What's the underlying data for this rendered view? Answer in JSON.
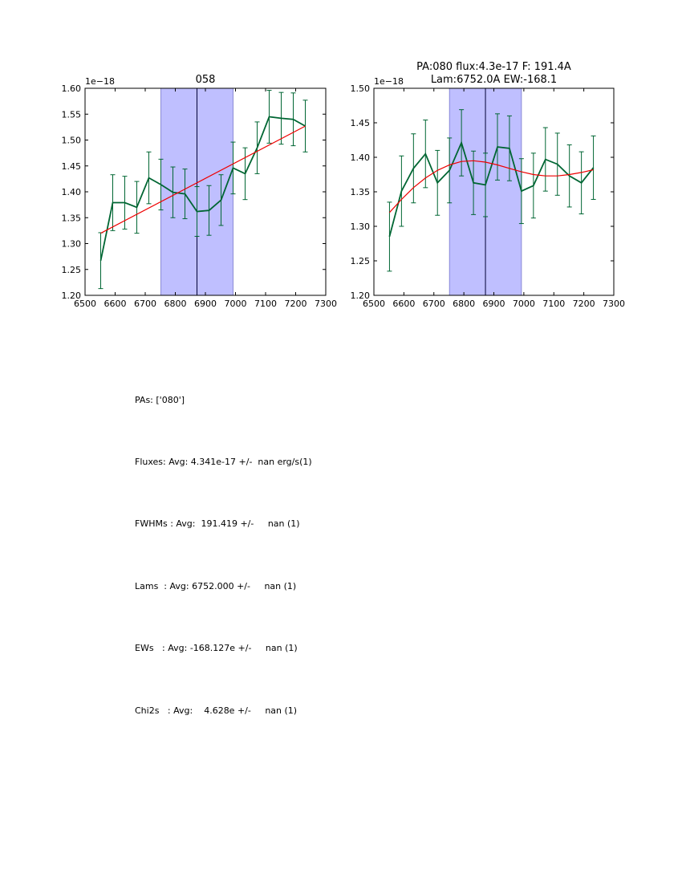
{
  "chart_data": [
    {
      "type": "line",
      "title": "058",
      "offset_text": "1e−18",
      "xlim": [
        6500,
        7300
      ],
      "ylim": [
        1.2,
        1.6
      ],
      "xticks": [
        6500,
        6600,
        6700,
        6800,
        6900,
        7000,
        7100,
        7200,
        7300
      ],
      "yticks": [
        "1.20",
        "1.25",
        "1.30",
        "1.35",
        "1.40",
        "1.45",
        "1.50",
        "1.55",
        "1.60"
      ],
      "band": [
        6752,
        6992
      ],
      "vline": 6872,
      "series": [
        {
          "style": "data",
          "color": "#006633",
          "x": [
            6552,
            6592,
            6632,
            6672,
            6712,
            6752,
            6792,
            6832,
            6872,
            6912,
            6952,
            6992,
            7032,
            7072,
            7112,
            7152,
            7192,
            7232
          ],
          "y": [
            1.267,
            1.379,
            1.379,
            1.37,
            1.427,
            1.414,
            1.399,
            1.396,
            1.362,
            1.364,
            1.384,
            1.446,
            1.435,
            1.485,
            1.545,
            1.542,
            1.54,
            1.527
          ],
          "err": [
            0.054,
            0.054,
            0.051,
            0.05,
            0.05,
            0.049,
            0.049,
            0.048,
            0.048,
            0.048,
            0.049,
            0.05,
            0.05,
            0.05,
            0.051,
            0.05,
            0.051,
            0.05
          ]
        },
        {
          "style": "fit",
          "color": "#ee0000",
          "x": [
            6552,
            7232
          ],
          "y": [
            1.32,
            1.527
          ]
        }
      ]
    },
    {
      "type": "line",
      "title_lines": [
        "PA:080 flux:4.3e-17 F: 191.4A",
        "Lam:6752.0A EW:-168.1"
      ],
      "offset_text": "1e−18",
      "xlim": [
        6500,
        7300
      ],
      "ylim": [
        1.2,
        1.5
      ],
      "xticks": [
        6500,
        6600,
        6700,
        6800,
        6900,
        7000,
        7100,
        7200,
        7300
      ],
      "yticks": [
        "1.20",
        "1.25",
        "1.30",
        "1.35",
        "1.40",
        "1.45",
        "1.50"
      ],
      "band": [
        6752,
        6992
      ],
      "vline": 6872,
      "series": [
        {
          "style": "data",
          "color": "#006633",
          "x": [
            6552,
            6592,
            6632,
            6672,
            6712,
            6752,
            6792,
            6832,
            6872,
            6912,
            6952,
            6992,
            7032,
            7072,
            7112,
            7152,
            7192,
            7232
          ],
          "y": [
            1.285,
            1.351,
            1.384,
            1.405,
            1.363,
            1.381,
            1.421,
            1.363,
            1.36,
            1.415,
            1.413,
            1.351,
            1.359,
            1.397,
            1.39,
            1.373,
            1.363,
            1.385
          ],
          "err": [
            0.05,
            0.051,
            0.05,
            0.049,
            0.047,
            0.047,
            0.048,
            0.046,
            0.046,
            0.048,
            0.047,
            0.047,
            0.047,
            0.046,
            0.045,
            0.045,
            0.045,
            0.046
          ]
        },
        {
          "style": "fit",
          "color": "#ee0000",
          "x": [
            6552,
            6592,
            6632,
            6672,
            6712,
            6752,
            6792,
            6832,
            6872,
            6912,
            6952,
            6992,
            7032,
            7072,
            7112,
            7152,
            7192,
            7232
          ],
          "y": [
            1.32,
            1.339,
            1.356,
            1.37,
            1.381,
            1.389,
            1.394,
            1.395,
            1.393,
            1.389,
            1.384,
            1.379,
            1.375,
            1.373,
            1.373,
            1.375,
            1.378,
            1.382
          ]
        }
      ]
    }
  ],
  "stats": {
    "pas": "PAs: ['080']",
    "fluxes": "Fluxes: Avg: 4.341e-17 +/-  nan erg/s(1)",
    "fwhms": "FWHMs : Avg:  191.419 +/-     nan (1)",
    "lams": "Lams  : Avg: 6752.000 +/-     nan (1)",
    "ews": "EWs   : Avg: -168.127e +/-     nan (1)",
    "chi2s": "Chi2s   : Avg:    4.628e +/-     nan (1)"
  }
}
